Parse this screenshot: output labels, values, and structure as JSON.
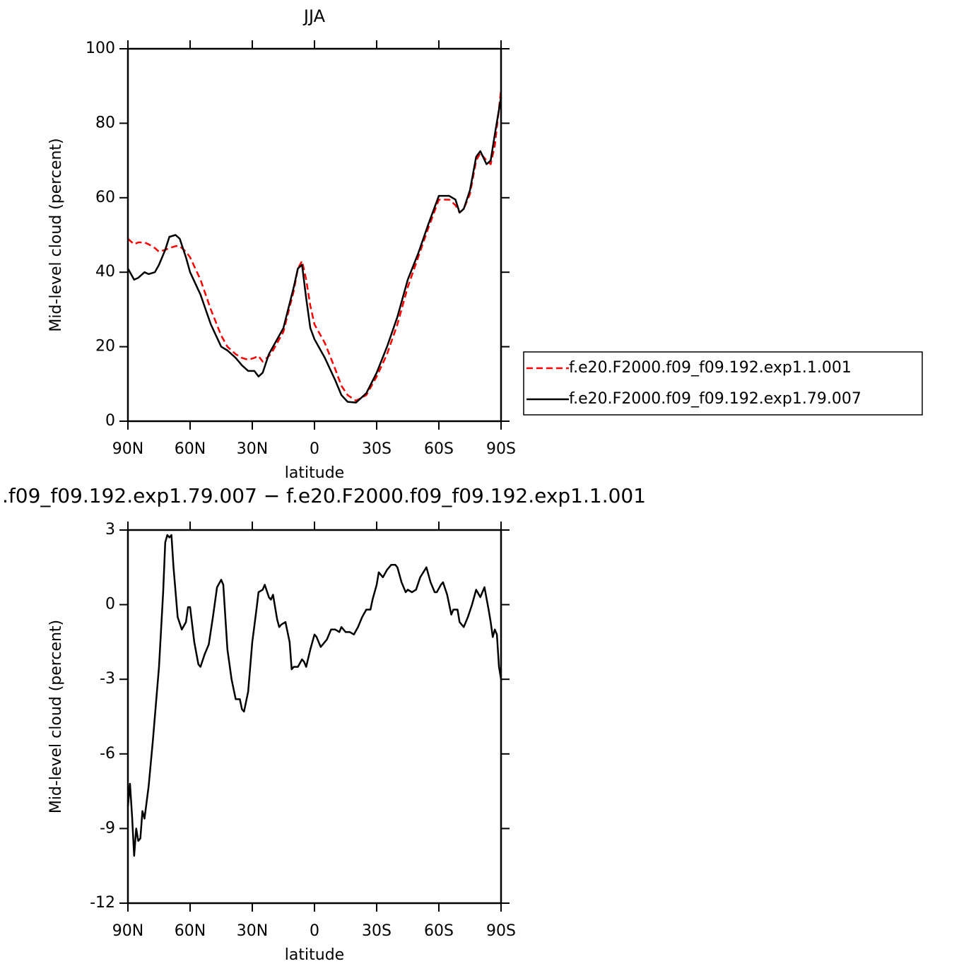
{
  "chart_data": [
    {
      "type": "line",
      "title": "JJA",
      "x_label": "latitude",
      "y_label": "Mid-level cloud (percent)",
      "xlim": [
        90,
        -90
      ],
      "xticks": [
        {
          "value": 90,
          "label": "90N"
        },
        {
          "value": 60,
          "label": "60N"
        },
        {
          "value": 30,
          "label": "30N"
        },
        0,
        {
          "value": -30,
          "label": "30S"
        },
        {
          "value": -60,
          "label": "60S"
        },
        {
          "value": -90,
          "label": "90S"
        }
      ],
      "ylim": [
        0,
        100
      ],
      "yticks": [
        0,
        20,
        40,
        60,
        80,
        100
      ],
      "legend": "right",
      "x": [
        90,
        87,
        85,
        82,
        80,
        77,
        75,
        72,
        70,
        67,
        65,
        62,
        60,
        55,
        50,
        45,
        42,
        38,
        35,
        32,
        29,
        27,
        25,
        22,
        20,
        15,
        10,
        8,
        6,
        4,
        2,
        0,
        -5,
        -10,
        -13,
        -16,
        -20,
        -25,
        -30,
        -35,
        -40,
        -45,
        -50,
        -55,
        -60,
        -65,
        -68,
        -70,
        -72,
        -75,
        -78,
        -80,
        -83,
        -85,
        -87,
        -90
      ],
      "series": [
        {
          "name": "f.e20.F2000.f09_f09.192.exp1.1.001",
          "color": "#ff0000",
          "line_style": "dashed",
          "values": [
            49,
            47.5,
            48,
            48,
            47.5,
            46.5,
            45.5,
            46,
            46.5,
            47,
            47,
            45.5,
            44,
            38,
            30,
            23,
            20,
            18,
            17,
            16.5,
            17,
            17.5,
            16,
            17.5,
            19,
            24,
            35,
            41,
            43,
            38,
            31,
            26,
            21,
            14,
            9.5,
            7,
            5.5,
            7,
            12,
            18,
            26,
            36,
            44,
            52,
            59.5,
            59.5,
            58,
            56,
            57,
            61,
            70,
            72,
            70,
            69,
            74,
            89
          ]
        },
        {
          "name": "f.e20.F2000.f09_f09.192.exp1.79.007",
          "color": "#000000",
          "line_style": "solid",
          "values": [
            41,
            38,
            38.5,
            40,
            39.5,
            40,
            42,
            46,
            49.5,
            50,
            49,
            44,
            40,
            34,
            26,
            20,
            19,
            17,
            15,
            13.5,
            13.5,
            12,
            13,
            18,
            20,
            25,
            36,
            41,
            42,
            33,
            25,
            22,
            17,
            11,
            7,
            5.2,
            5,
            7.5,
            13,
            20,
            28,
            38,
            45,
            53,
            60.5,
            60.5,
            59.5,
            56,
            57,
            62,
            71,
            72.5,
            69,
            70,
            77,
            87
          ]
        }
      ]
    },
    {
      "type": "line",
      "title": ".f09_f09.192.exp1.79.007 − f.e20.F2000.f09_f09.192.exp1.1.001",
      "x_label": "latitude",
      "y_label": "Mid-level cloud (percent)",
      "xlim": [
        90,
        -90
      ],
      "xticks": [
        {
          "value": 90,
          "label": "90N"
        },
        {
          "value": 60,
          "label": "60N"
        },
        {
          "value": 30,
          "label": "30N"
        },
        0,
        {
          "value": -30,
          "label": "30S"
        },
        {
          "value": -60,
          "label": "60S"
        },
        {
          "value": -90,
          "label": "90S"
        }
      ],
      "ylim": [
        -12,
        3
      ],
      "yticks": [
        -12,
        -9,
        -6,
        -3,
        0,
        3
      ],
      "x": [
        90,
        89,
        88,
        87,
        86,
        85,
        84,
        83,
        82,
        80,
        78,
        75,
        73,
        72,
        71,
        70,
        69,
        68,
        66,
        64,
        62,
        61,
        60,
        58,
        56,
        55,
        53,
        51,
        49,
        47,
        45,
        44,
        42,
        40,
        38,
        37,
        36,
        35,
        34,
        32,
        30,
        28,
        27,
        25,
        24,
        22,
        21,
        20,
        18,
        17,
        16,
        14,
        12,
        11,
        10,
        8,
        6,
        5,
        4,
        2,
        0,
        -1,
        -3,
        -4,
        -6,
        -8,
        -10,
        -12,
        -13,
        -15,
        -17,
        -19,
        -21,
        -23,
        -25,
        -27,
        -28,
        -30,
        -31,
        -33,
        -35,
        -37,
        -39,
        -40,
        -42,
        -44,
        -45,
        -47,
        -49,
        -51,
        -54,
        -56,
        -58,
        -59,
        -61,
        -62,
        -64,
        -66,
        -67,
        -69,
        -70,
        -72,
        -74,
        -76,
        -78,
        -80,
        -82,
        -84,
        -85,
        -86,
        -87,
        -88,
        -89,
        -90
      ],
      "series": [
        {
          "color": "#000000",
          "line_style": "solid",
          "values": [
            -8.1,
            -7.2,
            -8.5,
            -10.1,
            -9.0,
            -9.5,
            -9.4,
            -8.3,
            -8.6,
            -7.3,
            -5.5,
            -2.5,
            0.5,
            2.5,
            2.8,
            2.7,
            2.8,
            1.5,
            -0.5,
            -1.0,
            -0.7,
            -0.1,
            -0.1,
            -1.5,
            -2.4,
            -2.5,
            -2.0,
            -1.6,
            -0.5,
            0.7,
            1.0,
            0.8,
            -1.8,
            -3.0,
            -3.8,
            -3.8,
            -3.8,
            -4.2,
            -4.3,
            -3.5,
            -1.5,
            -0.2,
            0.5,
            0.6,
            0.8,
            0.3,
            0.2,
            0.4,
            -0.6,
            -0.9,
            -0.8,
            -0.7,
            -1.5,
            -2.6,
            -2.5,
            -2.5,
            -2.2,
            -2.3,
            -2.5,
            -1.8,
            -1.2,
            -1.3,
            -1.7,
            -1.6,
            -1.4,
            -1.0,
            -1.0,
            -1.1,
            -0.9,
            -1.1,
            -1.1,
            -1.2,
            -0.9,
            -0.5,
            -0.2,
            -0.2,
            0.2,
            0.8,
            1.3,
            1.1,
            1.4,
            1.6,
            1.6,
            1.5,
            0.9,
            0.5,
            0.6,
            0.5,
            0.6,
            1.1,
            1.5,
            0.9,
            0.5,
            0.5,
            0.8,
            0.9,
            0.4,
            -0.4,
            -0.2,
            -0.2,
            -0.7,
            -0.9,
            -0.5,
            0.0,
            0.6,
            0.3,
            0.7,
            -0.2,
            -0.7,
            -1.3,
            -1.0,
            -1.2,
            -2.5,
            -3.0
          ]
        }
      ]
    }
  ]
}
